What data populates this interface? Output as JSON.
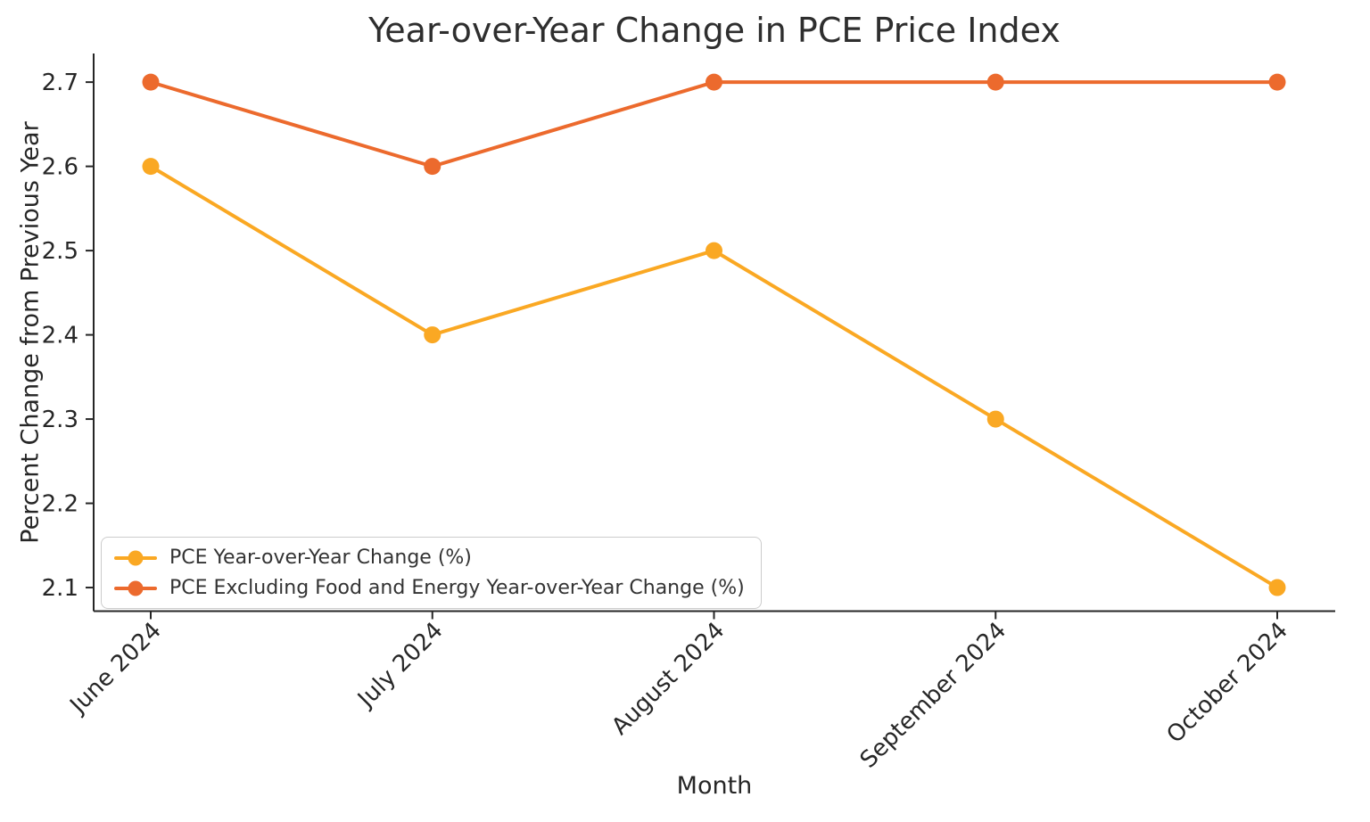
{
  "chart_data": {
    "type": "line",
    "title": "Year-over-Year Change in PCE Price Index",
    "xlabel": "Month",
    "ylabel": "Percent Change from Previous Year",
    "categories": [
      "June 2024",
      "July 2024",
      "August 2024",
      "September 2024",
      "October 2024"
    ],
    "series": [
      {
        "name": "PCE Year-over-Year Change (%)",
        "values": [
          2.6,
          2.4,
          2.5,
          2.3,
          2.1
        ],
        "color": "#FAA823"
      },
      {
        "name": "PCE Excluding Food and Energy Year-over-Year Change (%)",
        "values": [
          2.7,
          2.6,
          2.7,
          2.7,
          2.7
        ],
        "color": "#EC6A2D"
      }
    ],
    "yticks": [
      2.1,
      2.2,
      2.3,
      2.4,
      2.5,
      2.6,
      2.7
    ],
    "ylim": [
      2.072,
      2.734
    ],
    "grid": false,
    "legend_position": "lower-left",
    "axis_color": "#262626",
    "tick_label_color": "#262626"
  }
}
